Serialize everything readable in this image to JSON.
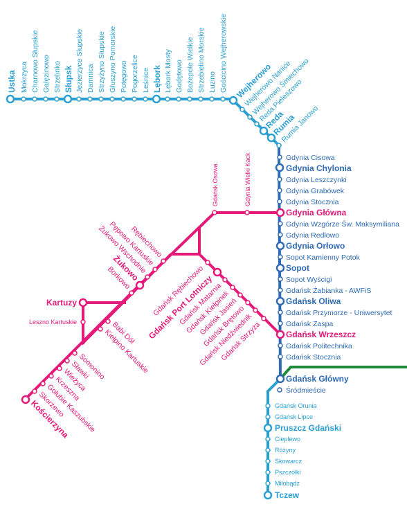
{
  "colors": {
    "light_blue": "#2aa0d2",
    "dark_blue": "#2f6cb5",
    "pink": "#e5197a",
    "green": "#1f8a3b"
  },
  "stations": {
    "ustka": "Ustka",
    "mokrzyca": "Mokrzyca",
    "charnowo_slupskie": "Charnowo Słupskie",
    "gleznowo": "Gałęzinowo",
    "strzelinko": "Strzelinko",
    "slupsk": "Słupsk",
    "jezierzyce_slupskie": "Jezierzyce Słupskie",
    "damnica": "Damnica",
    "strzyzyno_slupskie": "Strzyżyno Słupskie",
    "gluszyno_pomorskie": "Głuszyno Pomorskie",
    "potegowo": "Potęgowo",
    "pogorzelice": "Pogorzelice",
    "lesnice": "Leśnice",
    "lebork": "Lębork",
    "lebork_mosty": "Lębork Mosty",
    "godetowo": "Godętowo",
    "bozepole_wielkie": "Bożepole Wielkie",
    "strzebielino_morskie": "Strzebielino Morskie",
    "luzino": "Luzino",
    "goscicino_wejherowskie": "Gościcino Wejherowskie",
    "wejherowo": "Wejherowo",
    "wejherowo_nanice": "Wejherowo Nanice",
    "wejherowo_smiechowo": "Wejherowo Śmiechowo",
    "reda_pieleszowo": "Reda Pieleszowo",
    "reda": "Reda",
    "rumia": "Rumia",
    "rumia_janowo": "Rumia Janowo",
    "gdynia_cisowa": "Gdynia Cisowa",
    "gdynia_chylonia": "Gdynia Chylonia",
    "gdynia_leszczynki": "Gdynia Leszczynki",
    "gdynia_grabowek": "Gdynia Grabówek",
    "gdynia_stocznia": "Gdynia Stocznia",
    "gdynia_glowna": "Gdynia Główna",
    "gdynia_wzgorze": "Gdynia Wzgórze Św. Maksymiliana",
    "gdynia_redlowo": "Gdynia Redłowo",
    "gdynia_orlowo": "Gdynia Orłowo",
    "sopot_kamienny_potok": "Sopot Kamienny Potok",
    "sopot": "Sopot",
    "sopot_wyscigi": "Sopot Wyścigi",
    "gdansk_zabianka": "Gdańsk Żabianka - AWFiS",
    "gdansk_oliwa": "Gdańsk Oliwa",
    "gdansk_przymorze": "Gdańsk Przymorze - Uniwersytet",
    "gdansk_zaspa": "Gdańsk Zaspa",
    "gdansk_wrzeszcz": "Gdańsk Wrzeszcz",
    "gdansk_politechnika": "Gdańsk Politechnika",
    "gdansk_stocznia": "Gdańsk Stocznia",
    "gdansk_glowny": "Gdańsk Główny",
    "srodmiescie": "Śródmieście",
    "gdansk_orunia": "Gdańsk Orunia",
    "gdansk_lipce": "Gdańsk Lipce",
    "pruszcz_gdanski": "Pruszcz Gdański",
    "cieplewo": "Cieplewo",
    "rozyny": "Różyny",
    "skowarcz": "Skowarcz",
    "pszczolki": "Pszczółki",
    "milobadz": "Miłobądz",
    "tczew": "Tczew",
    "gdansk_osowa": "Gdańsk Osowa",
    "gdynia_wielki_kack": "Gdynia Wielki Kack",
    "rebiechowo": "Rębiechowo",
    "pepowo_kartuskie": "Pępowo Kartuskie",
    "zukowo_wschodnie": "Żukowo Wschodnie",
    "zukowo": "Żukowo",
    "borkowo": "Borkowo",
    "kartuzy": "Kartuzy",
    "leszno_kartuskie": "Leszno Kartuskie",
    "babi_dol": "Babi Dół",
    "kielpino_kartuskie": "Kiełpino Kartuskie",
    "somonino": "Somonino",
    "slawki": "Sławki",
    "wiezyca": "Wieżyca",
    "krzeszna": "Krzeszna",
    "golubie_kaszubskie": "Gołubie Kaszubskie",
    "skorzewo": "Skorzewo",
    "koscierzyna": "Kościerzyna",
    "gdansk_rebiechowo": "Gdańsk Rębiechowo",
    "gdansk_port_lotniczy": "Gdańsk Port Lotniczy",
    "gdansk_matarnia": "Gdańsk Matarnia",
    "gdansk_kielpinek": "Gdańsk Kiełpinek",
    "gdansk_jasien": "Gdańsk Jasień",
    "gdansk_bretowo": "Gdańsk Brętowo",
    "gdansk_niedzwiednik": "Gdańsk Niedźwiednik",
    "gdansk_strzyza": "Gdańsk Strzyża"
  }
}
